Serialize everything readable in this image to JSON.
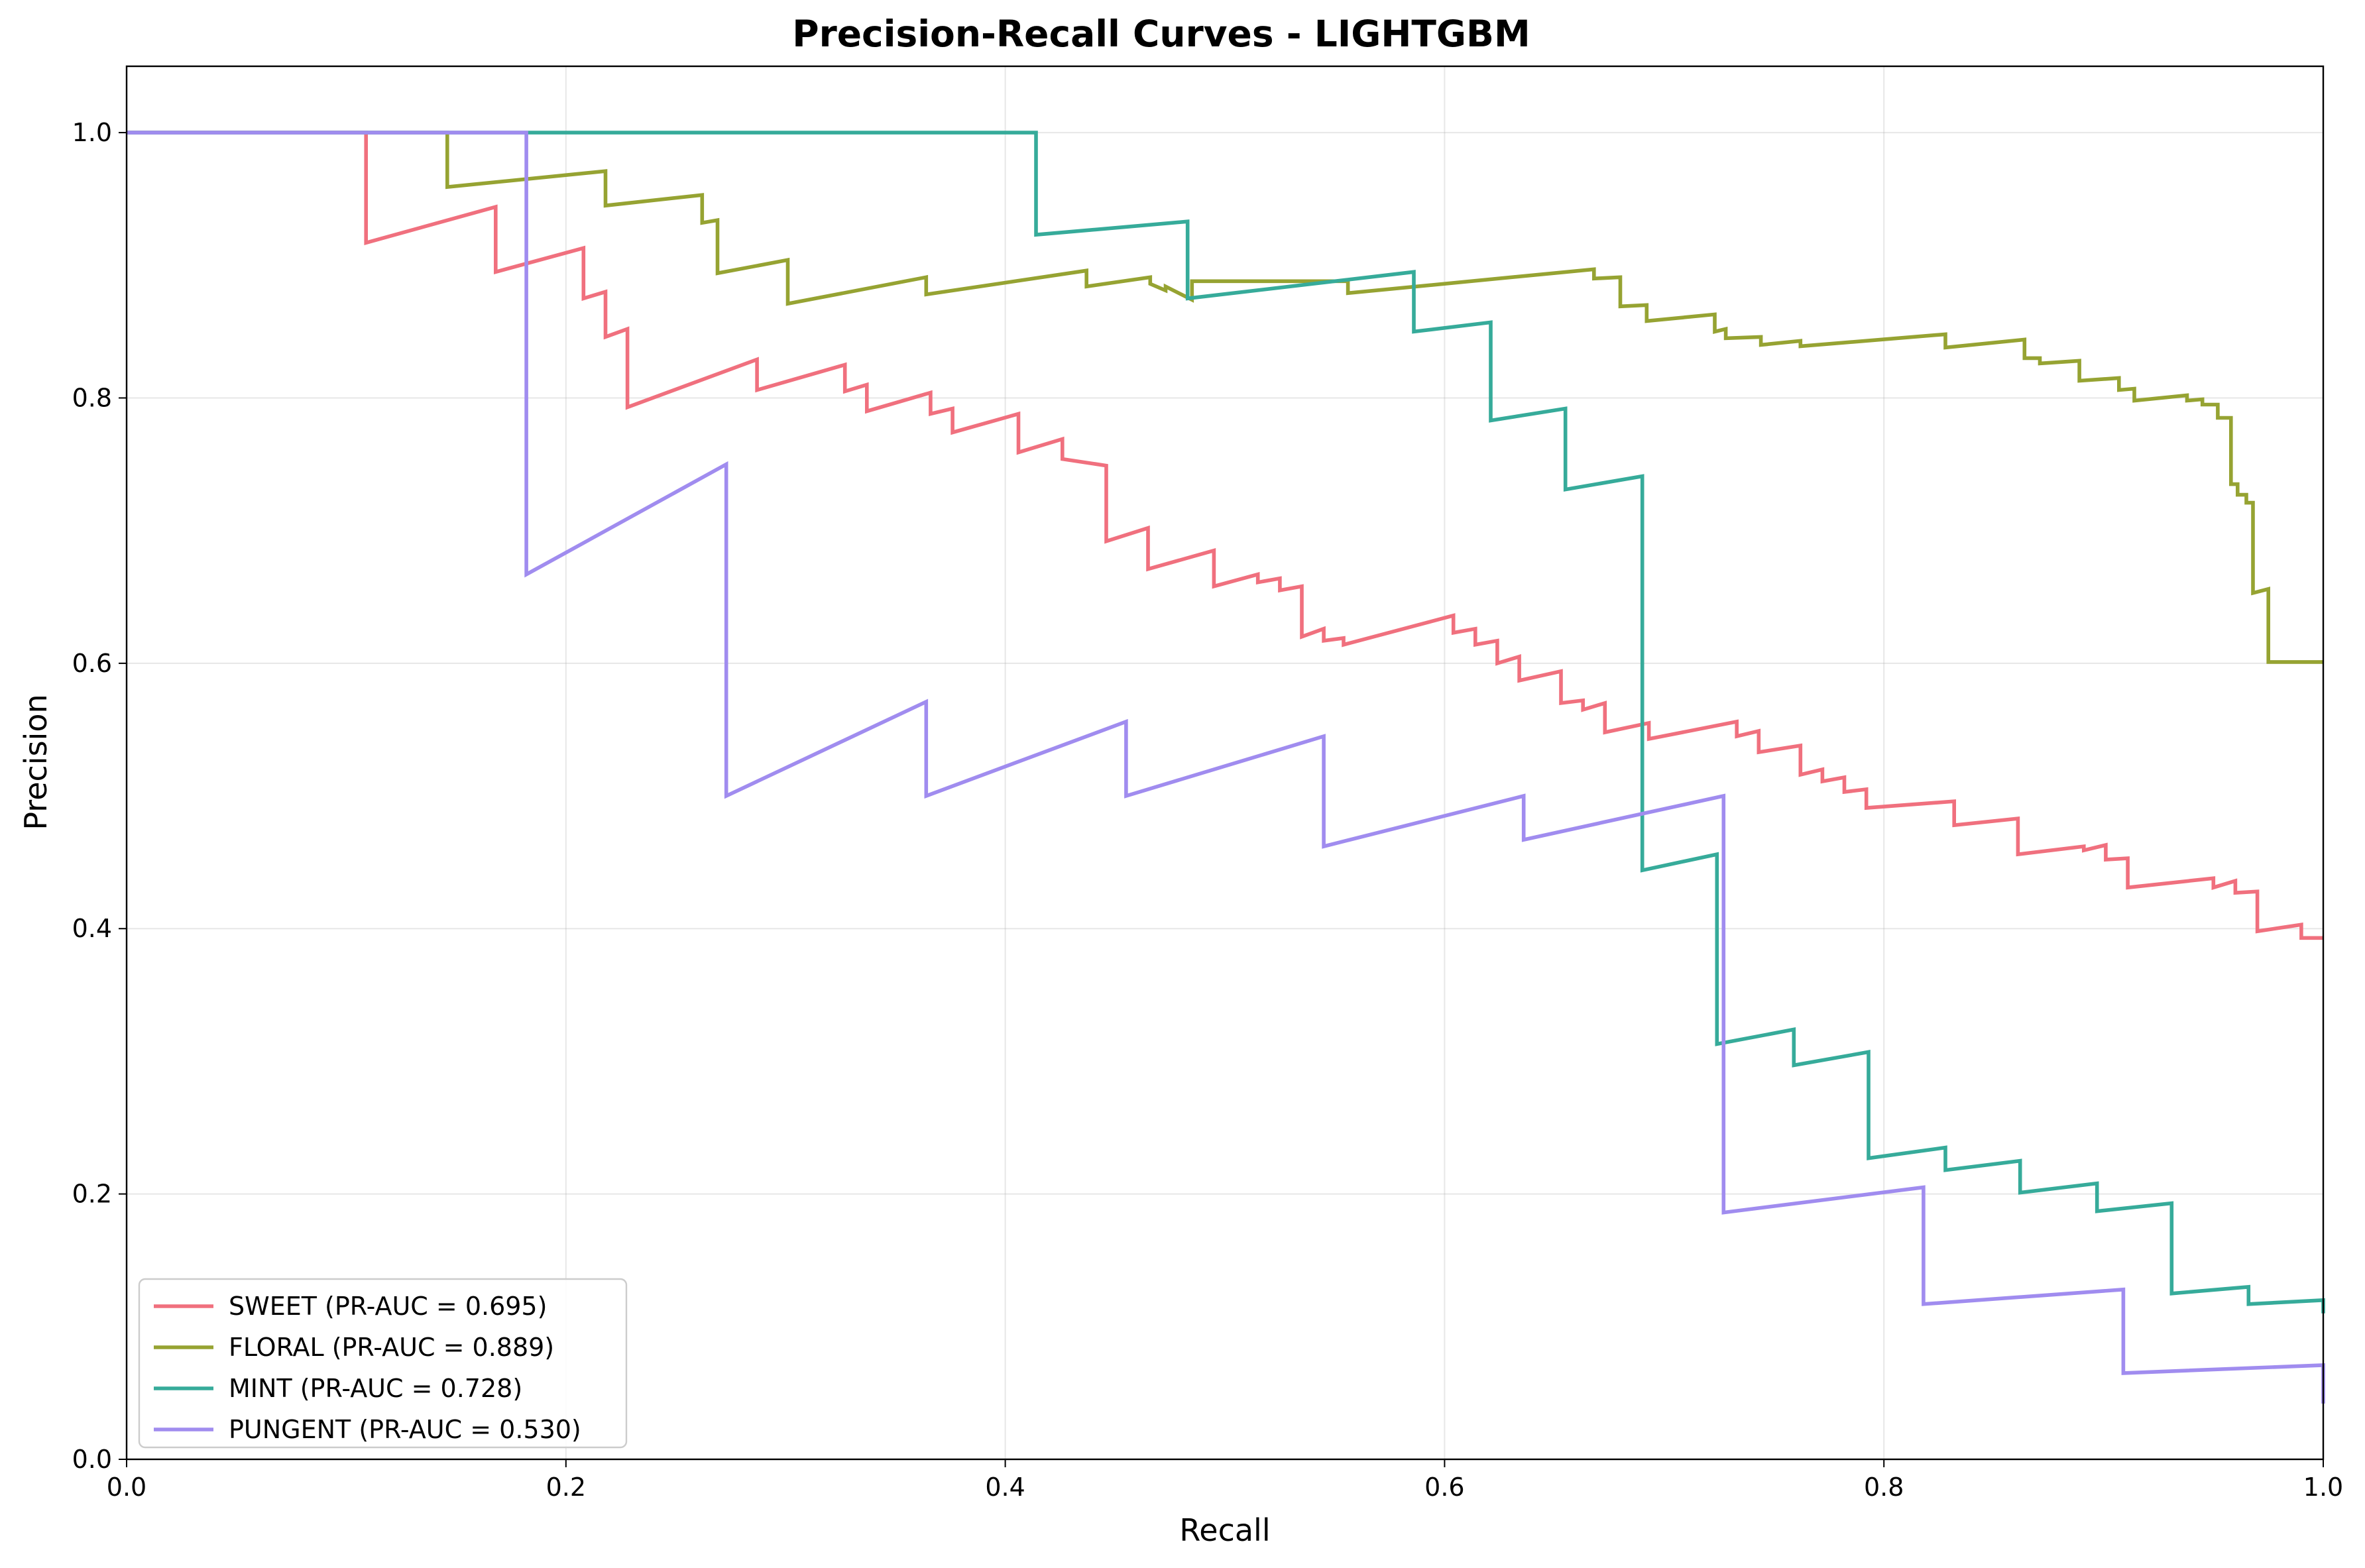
{
  "chart_data": {
    "type": "line",
    "title": "Precision-Recall Curves - LIGHTGBM",
    "xlabel": "Recall",
    "ylabel": "Precision",
    "xlim": [
      0.0,
      1.0
    ],
    "ylim": [
      0.0,
      1.05
    ],
    "xticks": [
      "0.0",
      "0.2",
      "0.4",
      "0.6",
      "0.8",
      "1.0"
    ],
    "yticks": [
      "0.0",
      "0.2",
      "0.4",
      "0.6",
      "0.8",
      "1.0"
    ],
    "grid": true,
    "legend_position": "lower-left",
    "series": [
      {
        "name": "SWEET (PR-AUC = 0.695)",
        "color": "#f0707e",
        "x": [
          0,
          0.109,
          0.109,
          0.168,
          0.168,
          0.208,
          0.208,
          0.218,
          0.218,
          0.228,
          0.228,
          0.287,
          0.287,
          0.327,
          0.327,
          0.337,
          0.337,
          0.366,
          0.366,
          0.376,
          0.376,
          0.406,
          0.406,
          0.426,
          0.426,
          0.446,
          0.446,
          0.465,
          0.465,
          0.495,
          0.495,
          0.515,
          0.515,
          0.525,
          0.525,
          0.535,
          0.535,
          0.545,
          0.545,
          0.554,
          0.554,
          0.604,
          0.604,
          0.614,
          0.614,
          0.624,
          0.624,
          0.634,
          0.634,
          0.653,
          0.653,
          0.663,
          0.663,
          0.673,
          0.673,
          0.693,
          0.693,
          0.733,
          0.733,
          0.743,
          0.743,
          0.762,
          0.762,
          0.772,
          0.772,
          0.782,
          0.782,
          0.792,
          0.792,
          0.832,
          0.832,
          0.861,
          0.861,
          0.891,
          0.891,
          0.901,
          0.901,
          0.911,
          0.911,
          0.95,
          0.95,
          0.96,
          0.96,
          0.97,
          0.97,
          0.99,
          0.99,
          1.0
        ],
        "y": [
          1.0,
          1.0,
          0.917,
          0.944,
          0.895,
          0.913,
          0.875,
          0.88,
          0.846,
          0.852,
          0.793,
          0.829,
          0.806,
          0.825,
          0.805,
          0.81,
          0.79,
          0.804,
          0.788,
          0.792,
          0.774,
          0.788,
          0.759,
          0.769,
          0.754,
          0.749,
          0.692,
          0.702,
          0.671,
          0.685,
          0.658,
          0.667,
          0.661,
          0.664,
          0.655,
          0.658,
          0.62,
          0.626,
          0.617,
          0.619,
          0.614,
          0.636,
          0.623,
          0.626,
          0.614,
          0.617,
          0.6,
          0.605,
          0.587,
          0.594,
          0.57,
          0.572,
          0.565,
          0.57,
          0.548,
          0.555,
          0.543,
          0.556,
          0.545,
          0.549,
          0.533,
          0.538,
          0.516,
          0.52,
          0.511,
          0.514,
          0.503,
          0.505,
          0.491,
          0.496,
          0.478,
          0.483,
          0.456,
          0.462,
          0.459,
          0.463,
          0.452,
          0.453,
          0.431,
          0.438,
          0.431,
          0.436,
          0.427,
          0.428,
          0.398,
          0.403,
          0.393,
          0.393
        ]
      },
      {
        "name": "FLORAL (PR-AUC = 0.889)",
        "color": "#96a332",
        "x": [
          0,
          0.146,
          0.146,
          0.218,
          0.218,
          0.262,
          0.262,
          0.269,
          0.269,
          0.301,
          0.301,
          0.364,
          0.364,
          0.437,
          0.437,
          0.466,
          0.466,
          0.473,
          0.473,
          0.485,
          0.485,
          0.556,
          0.556,
          0.668,
          0.668,
          0.68,
          0.68,
          0.692,
          0.692,
          0.723,
          0.723,
          0.728,
          0.728,
          0.744,
          0.744,
          0.762,
          0.762,
          0.828,
          0.828,
          0.864,
          0.864,
          0.871,
          0.871,
          0.889,
          0.889,
          0.907,
          0.907,
          0.914,
          0.914,
          0.938,
          0.938,
          0.945,
          0.945,
          0.952,
          0.952,
          0.958,
          0.958,
          0.961,
          0.961,
          0.965,
          0.965,
          0.968,
          0.968,
          0.975,
          0.975,
          0.993,
          0.993,
          1.0
        ],
        "y": [
          1.0,
          1.0,
          0.959,
          0.971,
          0.945,
          0.953,
          0.932,
          0.934,
          0.894,
          0.904,
          0.871,
          0.891,
          0.878,
          0.896,
          0.884,
          0.891,
          0.886,
          0.881,
          0.884,
          0.874,
          0.888,
          0.888,
          0.879,
          0.897,
          0.89,
          0.891,
          0.869,
          0.87,
          0.858,
          0.863,
          0.85,
          0.852,
          0.845,
          0.846,
          0.84,
          0.843,
          0.839,
          0.848,
          0.838,
          0.844,
          0.83,
          0.83,
          0.826,
          0.828,
          0.813,
          0.815,
          0.806,
          0.807,
          0.798,
          0.802,
          0.798,
          0.799,
          0.795,
          0.795,
          0.785,
          0.785,
          0.735,
          0.735,
          0.727,
          0.727,
          0.721,
          0.721,
          0.653,
          0.656,
          0.601,
          0.601,
          0.601,
          0.601
        ]
      },
      {
        "name": "MINT (PR-AUC = 0.728)",
        "color": "#36ab9a",
        "x": [
          0,
          0.414,
          0.414,
          0.483,
          0.483,
          0.586,
          0.586,
          0.621,
          0.621,
          0.655,
          0.655,
          0.69,
          0.69,
          0.724,
          0.724,
          0.759,
          0.759,
          0.793,
          0.793,
          0.828,
          0.828,
          0.862,
          0.862,
          0.897,
          0.897,
          0.931,
          0.931,
          0.966,
          0.966,
          1.0,
          1.0
        ],
        "y": [
          1.0,
          1.0,
          0.923,
          0.933,
          0.875,
          0.895,
          0.85,
          0.857,
          0.783,
          0.792,
          0.731,
          0.741,
          0.444,
          0.456,
          0.313,
          0.324,
          0.297,
          0.307,
          0.227,
          0.235,
          0.218,
          0.225,
          0.201,
          0.208,
          0.187,
          0.193,
          0.125,
          0.13,
          0.117,
          0.12,
          0.11
        ]
      },
      {
        "name": "PUNGENT (PR-AUC = 0.530)",
        "color": "#a08cef",
        "x": [
          0,
          0.182,
          0.182,
          0.273,
          0.273,
          0.364,
          0.364,
          0.455,
          0.455,
          0.545,
          0.545,
          0.636,
          0.636,
          0.727,
          0.727,
          0.818,
          0.818,
          0.909,
          0.909,
          1.0,
          1.0
        ],
        "y": [
          1.0,
          1.0,
          0.667,
          0.75,
          0.5,
          0.571,
          0.5,
          0.556,
          0.5,
          0.545,
          0.462,
          0.5,
          0.467,
          0.5,
          0.186,
          0.205,
          0.117,
          0.128,
          0.065,
          0.071,
          0.042
        ]
      }
    ]
  }
}
